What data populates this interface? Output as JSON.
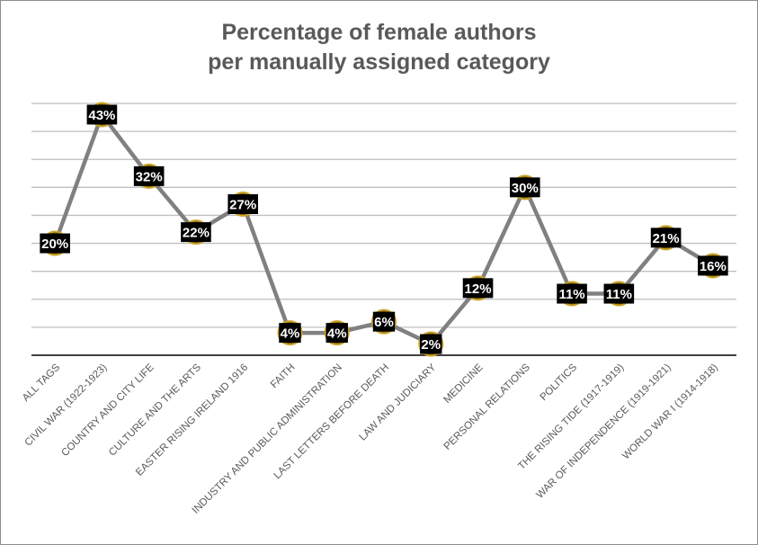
{
  "chart_data": {
    "type": "line",
    "title": "Percentage of female authors per manually assigned category",
    "title_lines": [
      "Percentage of female authors",
      "per manually assigned category"
    ],
    "xlabel": "",
    "ylabel": "",
    "categories": [
      "ALL TAGS",
      "CIVIL WAR (1922-1923)",
      "COUNTRY AND CITY LIFE",
      "CULTURE AND THE ARTS",
      "EASTER RISING IRELAND 1916",
      "FAITH",
      "INDUSTRY AND PUBLIC ADMINISTRATION",
      "LAST LETTERS BEFORE DEATH",
      "LAW AND JUDICIARY",
      "MEDICINE",
      "PERSONAL RELATIONS",
      "POLITICS",
      "THE RISING TIDE (1917-1919)",
      "WAR OF INDEPENDENCE (1919-1921)",
      "WORLD WAR I (1914-1918)"
    ],
    "series": [
      {
        "values": [
          20,
          43,
          32,
          22,
          27,
          4,
          4,
          6,
          2,
          12,
          30,
          11,
          11,
          21,
          16
        ],
        "labels": [
          "20%",
          "43%",
          "32%",
          "22%",
          "27%",
          "4%",
          "4%",
          "6%",
          "2%",
          "12%",
          "30%",
          "11%",
          "11%",
          "21%",
          "16%"
        ]
      }
    ],
    "ylim": [
      0,
      45
    ],
    "y_gridline_step": 5,
    "grid": true,
    "legend": "none",
    "colors": {
      "line": "#808080",
      "marker_fill": "#7f6000",
      "marker_edge": "#c9a227",
      "label_background": "#000000",
      "label_text": "#ffffff"
    }
  }
}
